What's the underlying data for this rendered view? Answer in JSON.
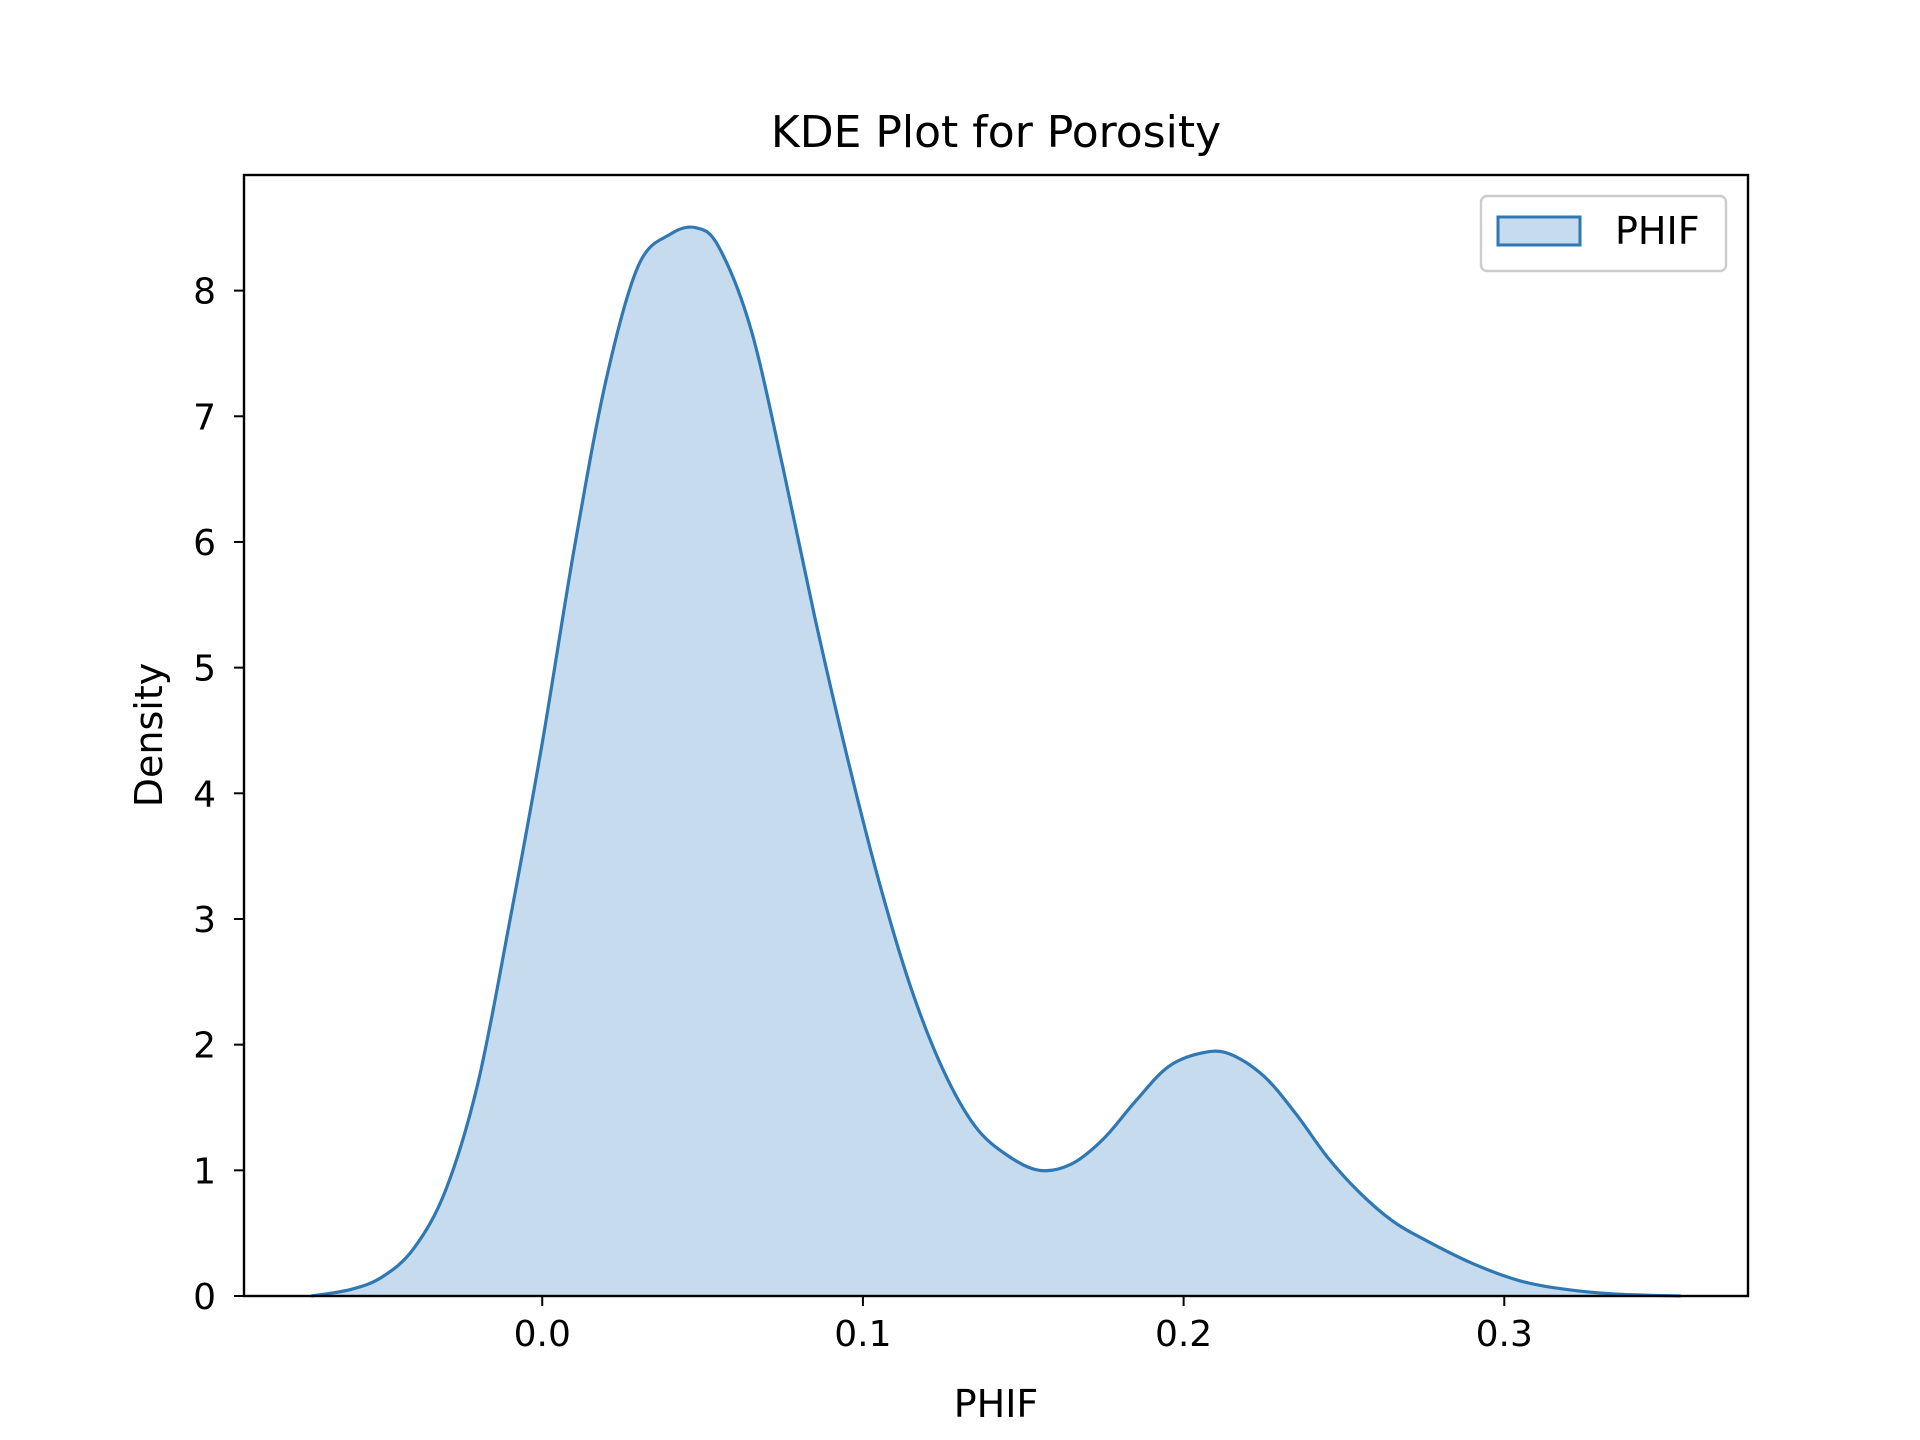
{
  "chart_data": {
    "type": "area",
    "title": "KDE Plot for Porosity",
    "xlabel": "PHIF",
    "ylabel": "Density",
    "xlim": [
      -0.093,
      0.376
    ],
    "ylim": [
      0,
      8.92
    ],
    "x_ticks": [
      0.0,
      0.1,
      0.2,
      0.3
    ],
    "x_tick_labels": [
      "0.0",
      "0.1",
      "0.2",
      "0.3"
    ],
    "y_ticks": [
      0,
      1,
      2,
      3,
      4,
      5,
      6,
      7,
      8
    ],
    "y_tick_labels": [
      "0",
      "1",
      "2",
      "3",
      "4",
      "5",
      "6",
      "7",
      "8"
    ],
    "grid": false,
    "legend": {
      "position": "top-right",
      "entries": [
        "PHIF"
      ]
    },
    "colors": {
      "line": "#2f78b4",
      "fill": "#c6dbed",
      "legend_border": "#cccccc"
    },
    "series": [
      {
        "name": "PHIF",
        "x": [
          -0.072,
          -0.06,
          -0.05,
          -0.04,
          -0.03,
          -0.02,
          -0.01,
          0.0,
          0.01,
          0.02,
          0.03,
          0.04,
          0.048,
          0.055,
          0.065,
          0.075,
          0.085,
          0.095,
          0.105,
          0.115,
          0.125,
          0.135,
          0.145,
          0.155,
          0.165,
          0.175,
          0.185,
          0.195,
          0.205,
          0.214,
          0.225,
          0.235,
          0.245,
          0.255,
          0.265,
          0.275,
          0.29,
          0.305,
          0.32,
          0.335,
          0.355
        ],
        "y": [
          0.0,
          0.05,
          0.15,
          0.38,
          0.85,
          1.7,
          3.0,
          4.4,
          5.95,
          7.3,
          8.2,
          8.45,
          8.5,
          8.35,
          7.7,
          6.6,
          5.4,
          4.3,
          3.3,
          2.45,
          1.8,
          1.35,
          1.12,
          1.0,
          1.05,
          1.25,
          1.55,
          1.82,
          1.93,
          1.93,
          1.75,
          1.45,
          1.1,
          0.82,
          0.6,
          0.45,
          0.26,
          0.12,
          0.05,
          0.015,
          0.0
        ]
      }
    ]
  }
}
